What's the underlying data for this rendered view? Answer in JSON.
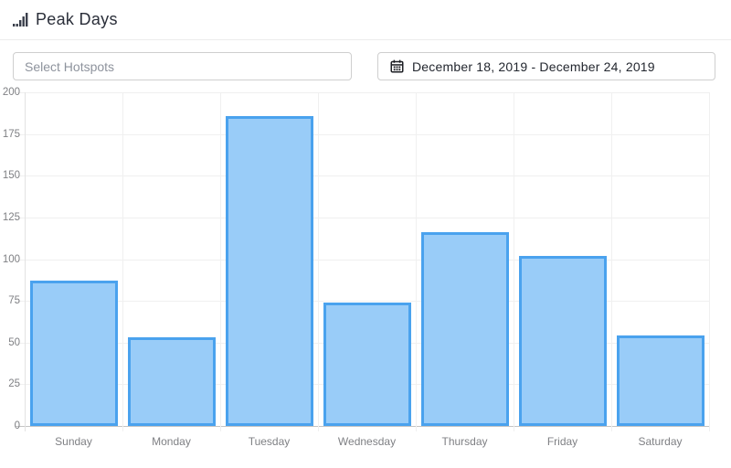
{
  "header": {
    "title": "Peak Days",
    "icon": "bar-chart-icon"
  },
  "controls": {
    "hotspots_placeholder": "Select Hotspots",
    "date_icon": "calendar-icon",
    "date_range": "December 18, 2019 - December 24, 2019"
  },
  "chart_data": {
    "type": "bar",
    "title": "",
    "categories": [
      "Sunday",
      "Monday",
      "Tuesday",
      "Wednesday",
      "Thursday",
      "Friday",
      "Saturday"
    ],
    "values": [
      87,
      53,
      186,
      74,
      116,
      102,
      54
    ],
    "xlabel": "",
    "ylabel": "",
    "ylim": [
      0,
      200
    ],
    "ytick_step": 25,
    "grid": true,
    "legend": false,
    "colors": {
      "bar_fill": "#99CCF8",
      "bar_border": "#4AA2EE",
      "grid_line": "#f0f0f0",
      "axis_line": "#e3e3e3",
      "zero_line": "#c4c4c4",
      "tick_label": "#7f8084"
    }
  }
}
